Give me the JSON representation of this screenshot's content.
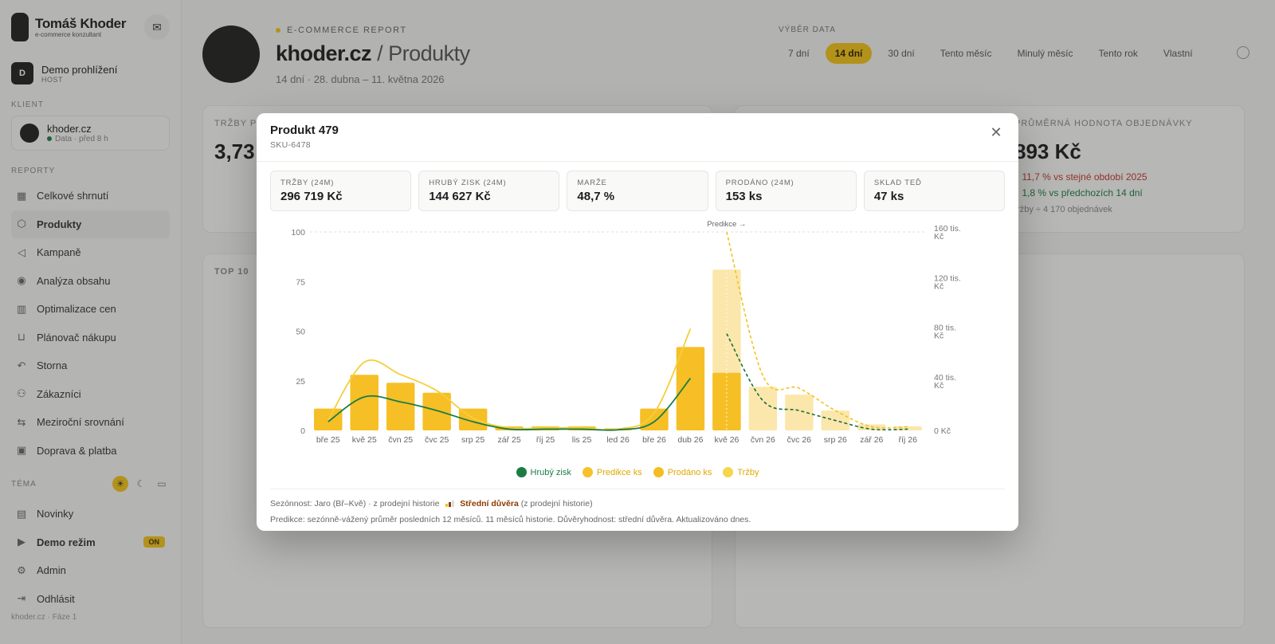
{
  "app": {
    "brand_name": "Tomáš Khoder",
    "brand_sub": "e-commerce konzultant",
    "user": {
      "initial": "D",
      "name": "Demo prohlížení",
      "role": "HOST"
    },
    "client_label": "KLIENT",
    "client": {
      "name": "khoder.cz",
      "meta": "Data · před 8 h"
    },
    "reports_label": "REPORTY",
    "nav": [
      {
        "label": "Celkové shrnutí",
        "icon": "grid-icon"
      },
      {
        "label": "Produkty",
        "icon": "box-icon"
      },
      {
        "label": "Kampaně",
        "icon": "megaphone-icon"
      },
      {
        "label": "Analýza obsahu",
        "icon": "broadcast-icon"
      },
      {
        "label": "Optimalizace cen",
        "icon": "building-icon"
      },
      {
        "label": "Plánovač nákupu",
        "icon": "cart-icon"
      },
      {
        "label": "Storna",
        "icon": "undo-icon"
      },
      {
        "label": "Zákazníci",
        "icon": "users-icon"
      },
      {
        "label": "Meziroční srovnání",
        "icon": "swap-icon"
      },
      {
        "label": "Doprava & platba",
        "icon": "truck-icon"
      }
    ],
    "theme_label": "TÉMA",
    "bottom_nav": [
      {
        "label": "Novinky",
        "icon": "news-icon"
      },
      {
        "label": "Demo režim",
        "icon": "play-icon",
        "badge": "ON"
      },
      {
        "label": "Admin",
        "icon": "gear-icon"
      },
      {
        "label": "Odhlásit",
        "icon": "logout-icon"
      }
    ],
    "footer": "khoder.cz · Fáze 1"
  },
  "header": {
    "eyebrow": "E-COMMERCE REPORT",
    "site": "khoder.cz",
    "page": "/ Produkty",
    "range_text": "14 dní · 28. dubna – 11. května 2026",
    "range_label": "VÝBĚR DATA",
    "range_tabs": [
      "7 dní",
      "14 dní",
      "30 dní",
      "Tento měsíc",
      "Minulý měsíc",
      "Tento rok",
      "Vlastní"
    ],
    "range_selected": 1
  },
  "background": {
    "revenue_label": "TRŽBY P",
    "revenue_value": "3,73",
    "aov_label": "PRŮMĚRNÁ HODNOTA OBJEDNÁVKY",
    "aov_value": "893 Kč",
    "aov_delta1": "↓ 11,7 % vs stejné období 2025",
    "aov_delta2": "↑ 1,8 % vs předchozích 14 dní",
    "aov_note": "tržby ÷ 4 170 objednávek",
    "top_label": "TOP 10"
  },
  "modal": {
    "title": "Produkt 479",
    "sku": "SKU-6478",
    "kpis": [
      {
        "label": "TRŽBY (24M)",
        "value": "296 719 Kč"
      },
      {
        "label": "HRUBÝ ZISK (24M)",
        "value": "144 627 Kč"
      },
      {
        "label": "MARŽE",
        "value": "48,7 %"
      },
      {
        "label": "PRODÁNO (24M)",
        "value": "153 ks"
      },
      {
        "label": "SKLAD TEĎ",
        "value": "47 ks"
      }
    ],
    "legend": [
      {
        "name": "Hrubý zisk",
        "color": "#1a7d45"
      },
      {
        "name": "Predikce ks",
        "color": "#f6c12b"
      },
      {
        "name": "Prodáno ks",
        "color": "#f5bd1f"
      },
      {
        "name": "Tržby",
        "color": "#f7d54d"
      }
    ],
    "foot_line1_a": "Sezónnost: Jaro (Bř–Kvě) · z prodejní historie",
    "foot_line1_conf": "Střední důvěra",
    "foot_line1_b": "(z prodejní historie)",
    "foot_line2": "Predikce: sezónně-vážený průměr posledních 12 měsíců. 11 měsíců historie. Důvěryhodnost: střední důvěra. Aktualizováno dnes."
  },
  "chart_data": {
    "type": "bar",
    "categories": [
      "bře 25",
      "kvě 25",
      "čvn 25",
      "čvc 25",
      "srp 25",
      "zář 25",
      "říj 25",
      "lis 25",
      "led 26",
      "bře 26",
      "dub 26",
      "kvě 26",
      "čvn 26",
      "čvc 26",
      "srp 26",
      "zář 26",
      "říj 26"
    ],
    "left_ticks": [
      "0",
      "25",
      "50",
      "75",
      "100"
    ],
    "right_ticks": [
      "0 Kč",
      "40 tis. Kč",
      "80 tis. Kč",
      "120 tis. Kč",
      "160 tis. Kč"
    ],
    "ylim_left": [
      0,
      100
    ],
    "ylim_right": [
      0,
      160000
    ],
    "prediction_label": "Predikce →",
    "prediction_start_index": 11,
    "series": [
      {
        "name": "Prodáno ks",
        "axis": "left",
        "type": "bar",
        "values": [
          11,
          28,
          24,
          19,
          11,
          2,
          2,
          2,
          1,
          11,
          42,
          29,
          null,
          null,
          null,
          null,
          null
        ]
      },
      {
        "name": "Predikce ks",
        "axis": "left",
        "type": "bar",
        "values": [
          null,
          null,
          null,
          null,
          null,
          null,
          null,
          null,
          null,
          null,
          null,
          81,
          22,
          18,
          10,
          3,
          2
        ]
      },
      {
        "name": "Tržby",
        "axis": "right",
        "type": "line",
        "values": [
          8000,
          55000,
          45000,
          32000,
          10000,
          2000,
          2000,
          2000,
          1000,
          14000,
          82000,
          null,
          null,
          null,
          null,
          null,
          null
        ]
      },
      {
        "name": "Tržby predikce",
        "axis": "right",
        "type": "line-dashed",
        "values": [
          null,
          null,
          null,
          null,
          null,
          null,
          null,
          null,
          null,
          null,
          null,
          160000,
          44000,
          34000,
          16000,
          3000,
          3000
        ]
      },
      {
        "name": "Hrubý zisk",
        "axis": "right",
        "type": "line",
        "values": [
          7000,
          27000,
          23000,
          16000,
          7000,
          1000,
          1000,
          1000,
          500,
          7000,
          42000,
          null,
          null,
          null,
          null,
          null,
          null
        ]
      },
      {
        "name": "Hrubý zisk predikce",
        "axis": "right",
        "type": "line-dashed",
        "values": [
          null,
          null,
          null,
          null,
          null,
          null,
          null,
          null,
          null,
          null,
          null,
          78000,
          24000,
          16000,
          8000,
          1000,
          1000
        ]
      }
    ],
    "grid": false,
    "legend_position": "bottom"
  }
}
